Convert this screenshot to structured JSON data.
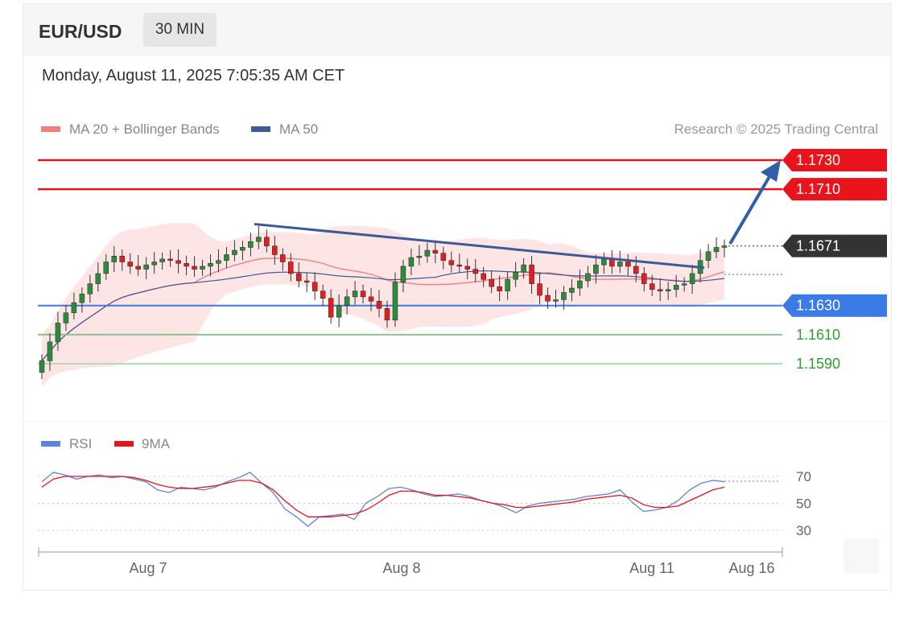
{
  "header": {
    "symbol": "EUR/USD",
    "timeframe": "30 MIN",
    "timestamp": "Monday, August 11, 2025 7:05:35 AM CET"
  },
  "legend": {
    "ma20_bollinger": "MA 20 + Bollinger Bands",
    "ma50": "MA 50",
    "attribution": "Research © 2025 Trading Central"
  },
  "colors": {
    "resistance": "#e8131b",
    "support": "#3a7be6",
    "target": "#2f9e2f",
    "current": "#333333",
    "ma20": "#f08080",
    "bands": "#fde0e0",
    "ma50": "#3d5a98",
    "trendline": "#3d5a98",
    "candle_up": "#2e8b3a",
    "candle_down": "#e02020",
    "rsi": "#5b83df",
    "rsi_ma": "#e8131b"
  },
  "chart_data": [
    {
      "type": "candlestick",
      "title": "EUR/USD 30 MIN",
      "ylim": [
        1.1561,
        1.1752
      ],
      "x_tick_labels": [
        "Aug 7",
        "Aug 8",
        "Aug 11",
        "Aug 16"
      ],
      "levels": [
        {
          "label": "1.1730",
          "value": 1.173,
          "kind": "resistance"
        },
        {
          "label": "1.1710",
          "value": 1.171,
          "kind": "resistance"
        },
        {
          "label": "1.1671",
          "value": 1.1671,
          "kind": "current"
        },
        {
          "label": "1.1630",
          "value": 1.163,
          "kind": "support"
        },
        {
          "label": "1.1610",
          "value": 1.161,
          "kind": "target"
        },
        {
          "label": "1.1590",
          "value": 1.159,
          "kind": "target"
        }
      ],
      "close_series": [
        1.1592,
        1.1605,
        1.1618,
        1.1625,
        1.1632,
        1.1638,
        1.1645,
        1.1652,
        1.166,
        1.1664,
        1.166,
        1.1657,
        1.1655,
        1.1658,
        1.166,
        1.1662,
        1.1661,
        1.1659,
        1.1657,
        1.1655,
        1.1657,
        1.1659,
        1.1661,
        1.1665,
        1.1668,
        1.167,
        1.1674,
        1.1677,
        1.1671,
        1.1665,
        1.166,
        1.1652,
        1.1647,
        1.1646,
        1.164,
        1.1635,
        1.1622,
        1.163,
        1.1636,
        1.164,
        1.1636,
        1.1633,
        1.1628,
        1.162,
        1.1646,
        1.1657,
        1.1663,
        1.1664,
        1.1668,
        1.1666,
        1.1661,
        1.1658,
        1.1657,
        1.1655,
        1.1652,
        1.1648,
        1.1643,
        1.164,
        1.1648,
        1.1653,
        1.1658,
        1.1645,
        1.1637,
        1.1633,
        1.1634,
        1.1639,
        1.1642,
        1.1647,
        1.1652,
        1.1658,
        1.1662,
        1.1657,
        1.166,
        1.1657,
        1.1652,
        1.1645,
        1.1641,
        1.164,
        1.1641,
        1.1644,
        1.1645,
        1.1652,
        1.1661,
        1.1667,
        1.167,
        1.1671
      ],
      "trendline": {
        "from": 1.1686,
        "to": 1.1656
      }
    },
    {
      "type": "line",
      "legend": [
        "RSI",
        "9MA"
      ],
      "y_ticks": [
        70,
        50,
        30
      ],
      "ylim": [
        30,
        70
      ],
      "series": [
        {
          "name": "RSI",
          "values": [
            66,
            73,
            71,
            68,
            70,
            71,
            69,
            70,
            68,
            66,
            60,
            58,
            62,
            61,
            60,
            62,
            66,
            69,
            73,
            65,
            58,
            46,
            40,
            33,
            40,
            41,
            42,
            38,
            50,
            55,
            61,
            62,
            60,
            57,
            55,
            56,
            57,
            55,
            52,
            50,
            47,
            43,
            48,
            50,
            51,
            52,
            53,
            55,
            56,
            57,
            60,
            51,
            44,
            45,
            47,
            52,
            60,
            65,
            67,
            66
          ]
        },
        {
          "name": "9MA",
          "values": [
            62,
            68,
            70,
            70,
            70,
            70,
            70,
            70,
            69,
            67,
            64,
            62,
            61,
            61,
            62,
            63,
            65,
            67,
            67,
            65,
            60,
            52,
            45,
            40,
            40,
            40,
            41,
            42,
            45,
            50,
            56,
            59,
            59,
            58,
            56,
            56,
            55,
            54,
            52,
            50,
            49,
            47,
            47,
            48,
            49,
            50,
            51,
            53,
            54,
            55,
            56,
            54,
            49,
            47,
            47,
            48,
            52,
            56,
            60,
            62
          ]
        }
      ]
    }
  ]
}
